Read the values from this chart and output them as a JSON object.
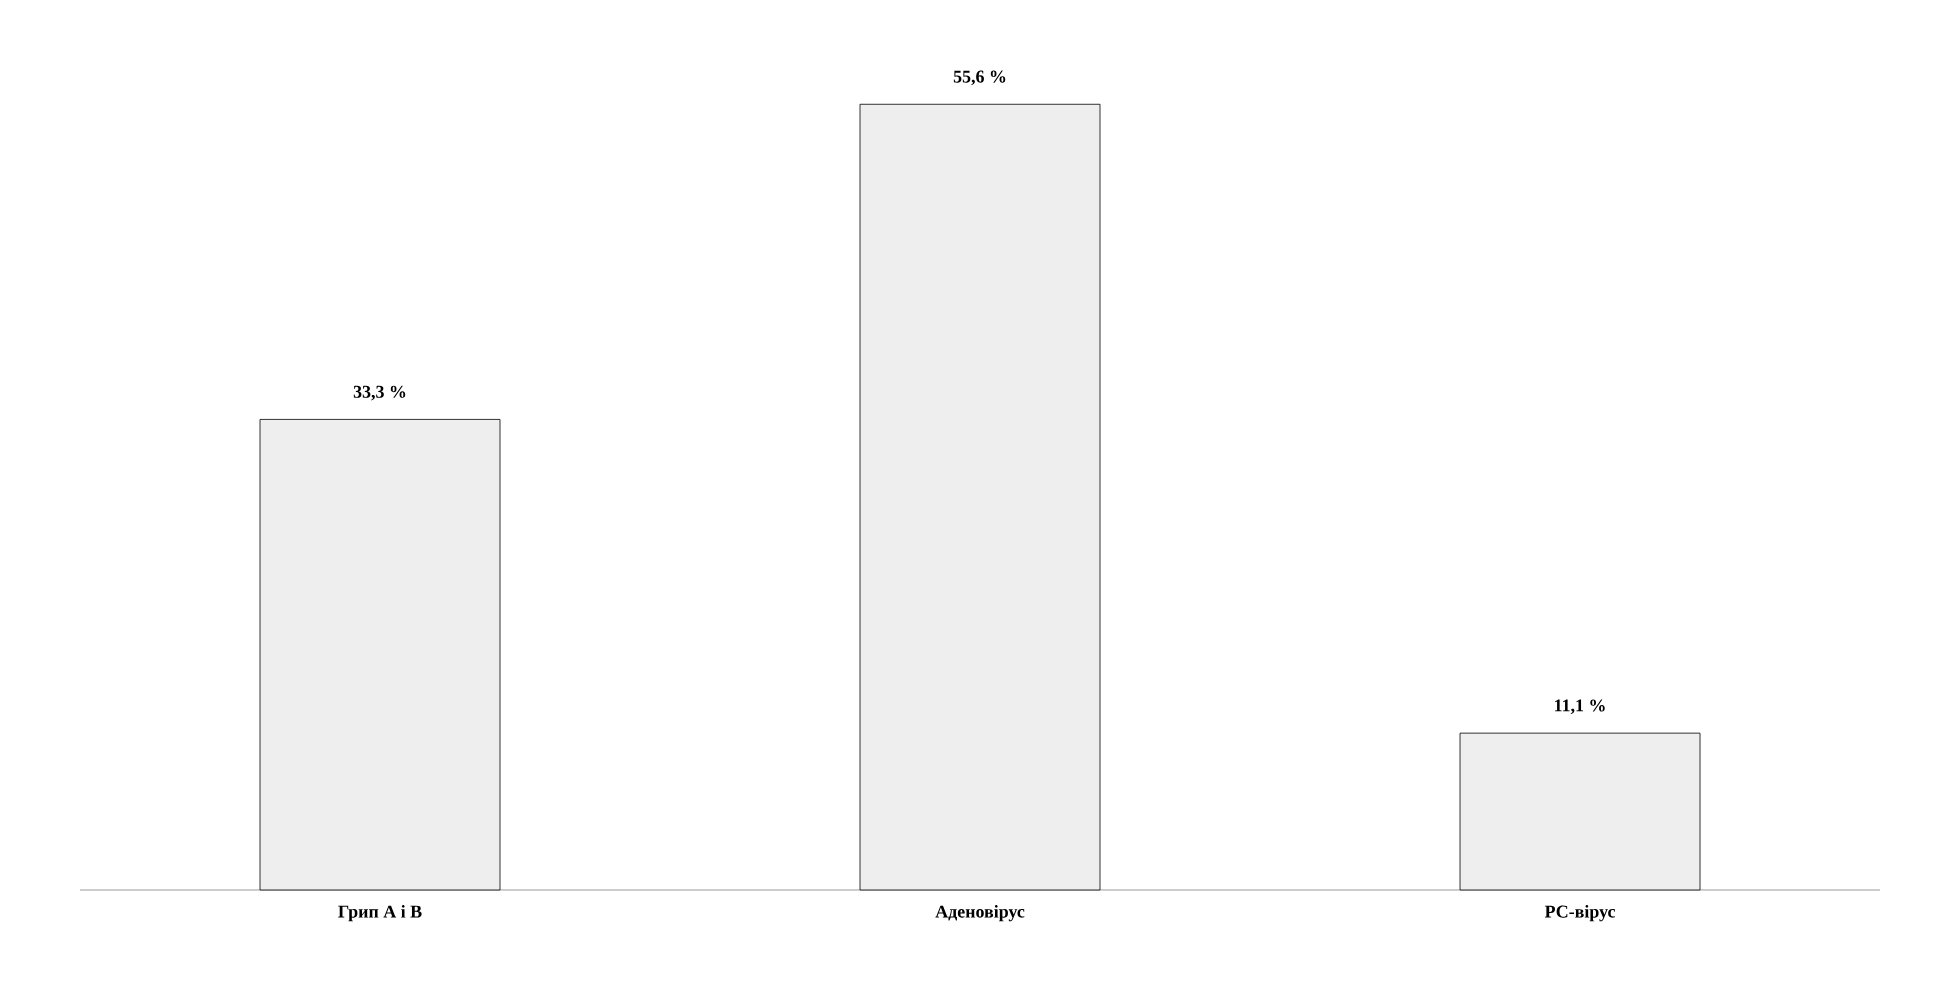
{
  "chart_data": {
    "type": "bar",
    "categories": [
      "Грип А і В",
      "Аденовірус",
      "РС-вірус"
    ],
    "values": [
      33.3,
      55.6,
      11.1
    ],
    "value_labels": [
      "33,3 %",
      "55,6 %",
      "11,1 %"
    ],
    "color": "#eeeeee"
  }
}
